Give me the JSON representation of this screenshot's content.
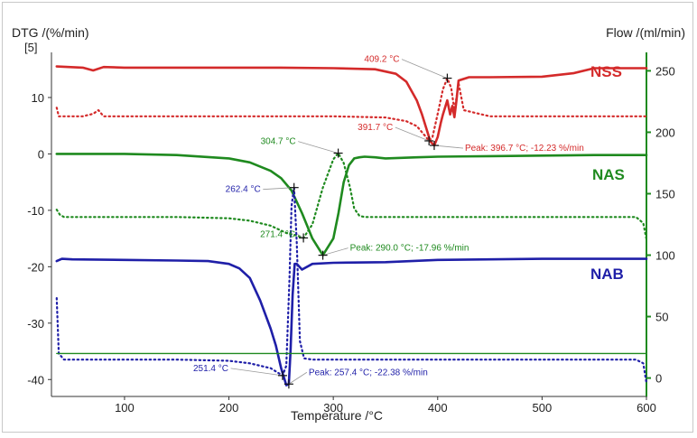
{
  "chart_data": {
    "type": "line",
    "title": "",
    "xlabel": "Temperature /°C",
    "ylabel_left": "DTG /(%/min)",
    "ylabel_left_scale": "[5]",
    "ylabel_right": "Flow /(ml/min)",
    "xlim": [
      30,
      600
    ],
    "ylim_left": [
      -43,
      18
    ],
    "ylim_right": [
      -15,
      265
    ],
    "x_ticks": [
      "100",
      "200",
      "300",
      "400",
      "500",
      "600"
    ],
    "y_left_ticks": [
      "10",
      "0",
      "-10",
      "-20",
      "-30",
      "-40"
    ],
    "y_right_ticks": [
      "250",
      "200",
      "150",
      "100",
      "50",
      "0"
    ],
    "colors": {
      "NSS": "#d42a2a",
      "NAS": "#1f8a1f",
      "NAB": "#1f1fa8",
      "axis": "#1f8a1f"
    },
    "labels": {
      "NSS": "NSS",
      "NAS": "NAS",
      "NAB": "NAB"
    },
    "series": [
      {
        "name": "NSS DTG",
        "color": "#d42a2a",
        "style": "solid",
        "x": [
          35,
          60,
          70,
          80,
          100,
          150,
          200,
          250,
          300,
          340,
          360,
          370,
          380,
          385,
          390,
          393,
          396.7,
          400,
          403,
          405,
          409.2,
          412,
          414,
          416,
          418,
          420,
          430,
          450,
          500,
          530,
          550,
          600
        ],
        "y": [
          15.5,
          15.3,
          14.8,
          15.4,
          15.3,
          15.3,
          15.3,
          15.3,
          15.2,
          15,
          14.2,
          12.8,
          9.5,
          7,
          4,
          2.2,
          1.5,
          3,
          5.5,
          7,
          9.5,
          7,
          8.5,
          6.5,
          9.5,
          13,
          13.6,
          13.6,
          13.7,
          14.3,
          15.2,
          15.2
        ]
      },
      {
        "name": "NSS Flow",
        "color": "#d42a2a",
        "style": "dotted",
        "x": [
          35,
          37,
          42,
          60,
          70,
          75,
          80,
          100,
          150,
          200,
          250,
          300,
          350,
          370,
          380,
          388,
          391.7,
          395,
          400,
          405,
          409.2,
          413,
          416,
          418,
          420,
          425,
          450,
          500,
          550,
          600
        ],
        "y": [
          220,
          213,
          213,
          213,
          215,
          218,
          213,
          213,
          213,
          213,
          213,
          213,
          212,
          209,
          205,
          197,
          193,
          196,
          215,
          235,
          244,
          236,
          218,
          228,
          240,
          218,
          213,
          213,
          213,
          213
        ]
      },
      {
        "name": "NAS DTG",
        "color": "#1f8a1f",
        "style": "solid",
        "x": [
          35,
          100,
          150,
          200,
          220,
          240,
          250,
          260,
          270,
          280,
          290,
          300,
          305,
          310,
          315,
          320,
          325,
          330,
          340,
          350,
          380,
          400,
          450,
          500,
          550,
          600
        ],
        "y": [
          0,
          0,
          -0.2,
          -0.8,
          -1.5,
          -3,
          -4.3,
          -6.5,
          -10.5,
          -15,
          -17.96,
          -15,
          -10.5,
          -5,
          -2,
          -0.8,
          -0.6,
          -0.5,
          -0.6,
          -0.8,
          -0.6,
          -0.5,
          -0.4,
          -0.3,
          -0.2,
          -0.2
        ]
      },
      {
        "name": "NAS Flow",
        "color": "#1f8a1f",
        "style": "dotted",
        "x": [
          35,
          38,
          42,
          60,
          100,
          150,
          200,
          220,
          240,
          255,
          265,
          271.4,
          280,
          290,
          300,
          304.7,
          310,
          316,
          320,
          325,
          330,
          340,
          400,
          450,
          500,
          550,
          590,
          597,
          600
        ],
        "y": [
          137,
          133,
          131,
          131,
          131,
          131,
          130,
          128,
          124,
          118,
          116,
          114,
          125,
          155,
          178,
          183,
          175,
          155,
          138,
          132,
          131,
          131,
          131,
          131,
          131,
          131,
          131,
          126,
          113
        ]
      },
      {
        "name": "NAB DTG",
        "color": "#1f1fa8",
        "style": "solid",
        "x": [
          35,
          40,
          50,
          100,
          150,
          180,
          200,
          210,
          220,
          230,
          240,
          245,
          250,
          255,
          257.4,
          259,
          261,
          263,
          265,
          270,
          280,
          300,
          350,
          400,
          450,
          500,
          550,
          600
        ],
        "y": [
          -19,
          -18.6,
          -18.7,
          -18.8,
          -18.9,
          -19,
          -19.5,
          -20.3,
          -22,
          -26,
          -31,
          -34,
          -38,
          -41,
          -40.8,
          -35,
          -25,
          -19.5,
          -19.5,
          -20.5,
          -19.5,
          -19.3,
          -19.2,
          -18.8,
          -18.7,
          -18.6,
          -18.6,
          -18.6
        ]
      },
      {
        "name": "NAB Flow",
        "color": "#1f1fa8",
        "style": "dotted",
        "x": [
          35,
          37,
          42,
          60,
          100,
          150,
          200,
          220,
          240,
          251.4,
          255,
          258,
          260,
          262.4,
          265,
          268,
          272,
          280,
          300,
          350,
          400,
          450,
          500,
          550,
          590,
          597,
          600
        ],
        "y": [
          65,
          20,
          15,
          15,
          15,
          15,
          14,
          12,
          8,
          2,
          10,
          80,
          140,
          155,
          110,
          30,
          16,
          15,
          15,
          15,
          15,
          15,
          15,
          15,
          15,
          12,
          -4
        ]
      },
      {
        "name": "Flow baseline",
        "color": "#1f8a1f",
        "style": "solid-thin",
        "x": [
          35,
          600
        ],
        "y": [
          20,
          20
        ]
      }
    ],
    "annotations": [
      {
        "text": "409.2 °C",
        "color": "#d42a2a",
        "marker_x": 409.2,
        "marker_y": 244,
        "axis": "right"
      },
      {
        "text": "391.7 °C",
        "color": "#d42a2a",
        "marker_x": 391.7,
        "marker_y": 193,
        "axis": "right"
      },
      {
        "text": "Peak: 396.7 °C; -12.23 %/min",
        "color": "#d42a2a",
        "marker_x": 396.7,
        "marker_y": 1.5,
        "axis": "left"
      },
      {
        "text": "304.7 °C",
        "color": "#1f8a1f",
        "marker_x": 304.7,
        "marker_y": 183,
        "axis": "right"
      },
      {
        "text": "271.4 °C",
        "color": "#1f8a1f",
        "marker_x": 271.4,
        "marker_y": 114,
        "axis": "right"
      },
      {
        "text": "Peak: 290.0 °C; -17.96 %/min",
        "color": "#1f8a1f",
        "marker_x": 290.0,
        "marker_y": -17.96,
        "axis": "left"
      },
      {
        "text": "262.4 °C",
        "color": "#1f1fa8",
        "marker_x": 262.4,
        "marker_y": 155,
        "axis": "right"
      },
      {
        "text": "251.4 °C",
        "color": "#1f1fa8",
        "marker_x": 251.4,
        "marker_y": 2,
        "axis": "right"
      },
      {
        "text": "Peak: 257.4 °C; -22.38 %/min",
        "color": "#1f1fa8",
        "marker_x": 257.4,
        "marker_y": -40.8,
        "axis": "left"
      }
    ]
  }
}
